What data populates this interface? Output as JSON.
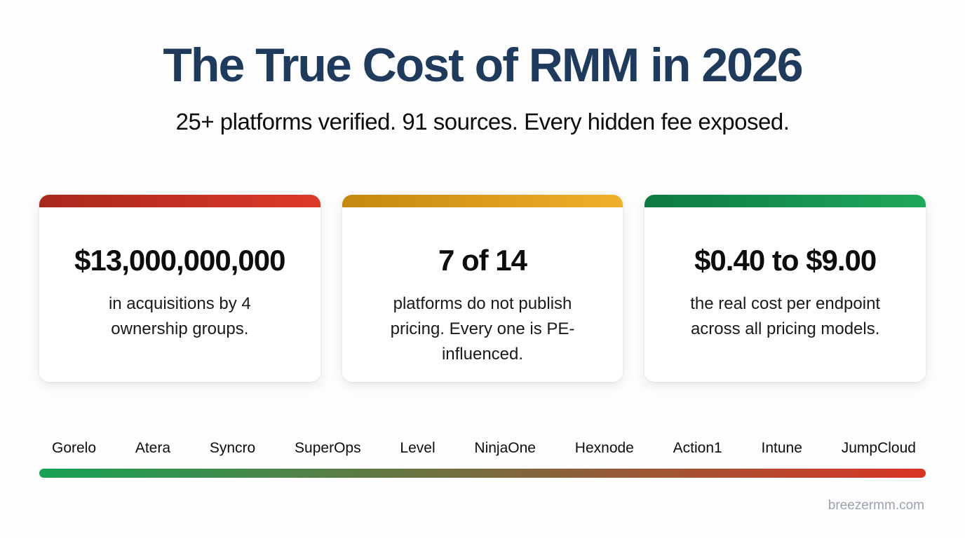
{
  "page": {
    "title": "The True Cost of RMM in 2026",
    "subtitle": "25+ platforms verified. 91 sources. Every hidden fee exposed.",
    "footer": "breezermm.com"
  },
  "colors": {
    "title_text": "#1e3a5c",
    "footer_text": "#9aa3ae",
    "card_red_from": "#a8281c",
    "card_red_to": "#dd3a2a",
    "card_amber_from": "#c5880f",
    "card_amber_to": "#f0b02a",
    "card_green_from": "#0d7a42",
    "card_green_to": "#1fa85c",
    "bar_from": "#17a356",
    "bar_to": "#d93425"
  },
  "cards": [
    {
      "accent": "red",
      "value": "$13,000,000,000",
      "description": "in acquisitions by 4 ownership groups."
    },
    {
      "accent": "amber",
      "value": "7 of 14",
      "description": "platforms do not publish pricing. Every one is PE-influenced."
    },
    {
      "accent": "green",
      "value": "$0.40 to $9.00",
      "description": "the real cost per endpoint across all pricing models."
    }
  ],
  "spectrum": {
    "platforms": [
      "Gorelo",
      "Atera",
      "Syncro",
      "SuperOps",
      "Level",
      "NinjaOne",
      "Hexnode",
      "Action1",
      "Intune",
      "JumpCloud"
    ]
  }
}
